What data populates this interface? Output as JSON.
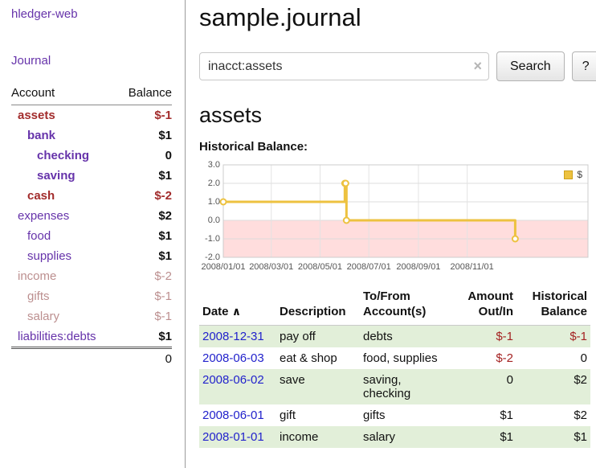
{
  "app": {
    "title": "hledger-web",
    "nav": {
      "journal": "Journal"
    }
  },
  "sidebar": {
    "header": {
      "account": "Account",
      "balance": "Balance"
    },
    "accounts": [
      {
        "name": "assets",
        "balance": "$-1",
        "indent": 0,
        "strong": true,
        "tone": "neg"
      },
      {
        "name": "bank",
        "balance": "$1",
        "indent": 1,
        "strong": true,
        "tone": "link"
      },
      {
        "name": "checking",
        "balance": "0",
        "indent": 2,
        "strong": true,
        "tone": "link"
      },
      {
        "name": "saving",
        "balance": "$1",
        "indent": 2,
        "strong": true,
        "tone": "link"
      },
      {
        "name": "cash",
        "balance": "$-2",
        "indent": 1,
        "strong": true,
        "tone": "neg"
      },
      {
        "name": "expenses",
        "balance": "$2",
        "indent": 0,
        "strong": false,
        "tone": "link"
      },
      {
        "name": "food",
        "balance": "$1",
        "indent": 1,
        "strong": false,
        "tone": "link"
      },
      {
        "name": "supplies",
        "balance": "$1",
        "indent": 1,
        "strong": false,
        "tone": "link"
      },
      {
        "name": "income",
        "balance": "$-2",
        "indent": 0,
        "strong": false,
        "tone": "dim"
      },
      {
        "name": "gifts",
        "balance": "$-1",
        "indent": 1,
        "strong": false,
        "tone": "dim"
      },
      {
        "name": "salary",
        "balance": "$-1",
        "indent": 1,
        "strong": false,
        "tone": "dim"
      },
      {
        "name": "liabilities:debts",
        "balance": "$1",
        "indent": 0,
        "strong": false,
        "tone": "link"
      }
    ],
    "total": "0"
  },
  "main": {
    "title": "sample.journal",
    "search": {
      "value": "inacct:assets",
      "clear_icon": "×",
      "button_label": "Search",
      "help_label": "?"
    },
    "heading": "assets",
    "chart_title": "Historical Balance:"
  },
  "chart_data": {
    "type": "line",
    "title": "Historical Balance",
    "step": true,
    "legend": [
      {
        "label": "$",
        "color": "#edc240"
      }
    ],
    "legend_position": "top-right",
    "series": [
      {
        "name": "$",
        "points": [
          {
            "date": "2008-01-01",
            "value": 1
          },
          {
            "date": "2008-06-01",
            "value": 2
          },
          {
            "date": "2008-06-02",
            "value": 2
          },
          {
            "date": "2008-06-03",
            "value": 0
          },
          {
            "date": "2008-12-31",
            "value": -1
          }
        ]
      }
    ],
    "ylim": [
      -2,
      3
    ],
    "yticks": [
      "3.0",
      "2.0",
      "1.0",
      "0.0",
      "-1.0",
      "-2.0"
    ],
    "xticks": [
      "2008/01/01",
      "2008/03/01",
      "2008/05/01",
      "2008/07/01",
      "2008/09/01",
      "2008/11/01"
    ],
    "xlim": [
      "2008-01-01",
      "2009-04-01"
    ],
    "grid": true,
    "line_color": "#edc240",
    "swatch_border": "#cda21e",
    "negative_region_color": "#ffdddd"
  },
  "table": {
    "headers": {
      "date": "Date",
      "sort_indicator": "∧",
      "description": "Description",
      "accounts_line1": "To/From",
      "accounts_line2": "Account(s)",
      "amount_line1": "Amount",
      "amount_line2": "Out/In",
      "balance_line1": "Historical",
      "balance_line2": "Balance"
    },
    "rows": [
      {
        "date": "2008-12-31",
        "description": "pay off",
        "accounts": "debts",
        "amount": "$-1",
        "amount_negative": true,
        "balance": "$-1",
        "balance_negative": true,
        "highlight": true
      },
      {
        "date": "2008-06-03",
        "description": "eat & shop",
        "accounts": "food, supplies",
        "amount": "$-2",
        "amount_negative": true,
        "balance": "0",
        "balance_negative": false,
        "highlight": false
      },
      {
        "date": "2008-06-02",
        "description": "save",
        "accounts": "saving, checking",
        "amount": "0",
        "amount_negative": false,
        "balance": "$2",
        "balance_negative": false,
        "highlight": true
      },
      {
        "date": "2008-06-01",
        "description": "gift",
        "accounts": "gifts",
        "amount": "$1",
        "amount_negative": false,
        "balance": "$2",
        "balance_negative": false,
        "highlight": false
      },
      {
        "date": "2008-01-01",
        "description": "income",
        "accounts": "salary",
        "amount": "$1",
        "amount_negative": false,
        "balance": "$1",
        "balance_negative": false,
        "highlight": true
      }
    ]
  },
  "colors": {
    "purple_link": "#6633aa",
    "negative_strong": "#a22c2c",
    "negative_dim": "#bc8f8f",
    "date_link_blue": "#2222cc",
    "row_highlight_green": "#e2efd9",
    "chart_line_gold": "#edc240",
    "chart_negative_pink": "#ffdddd"
  }
}
